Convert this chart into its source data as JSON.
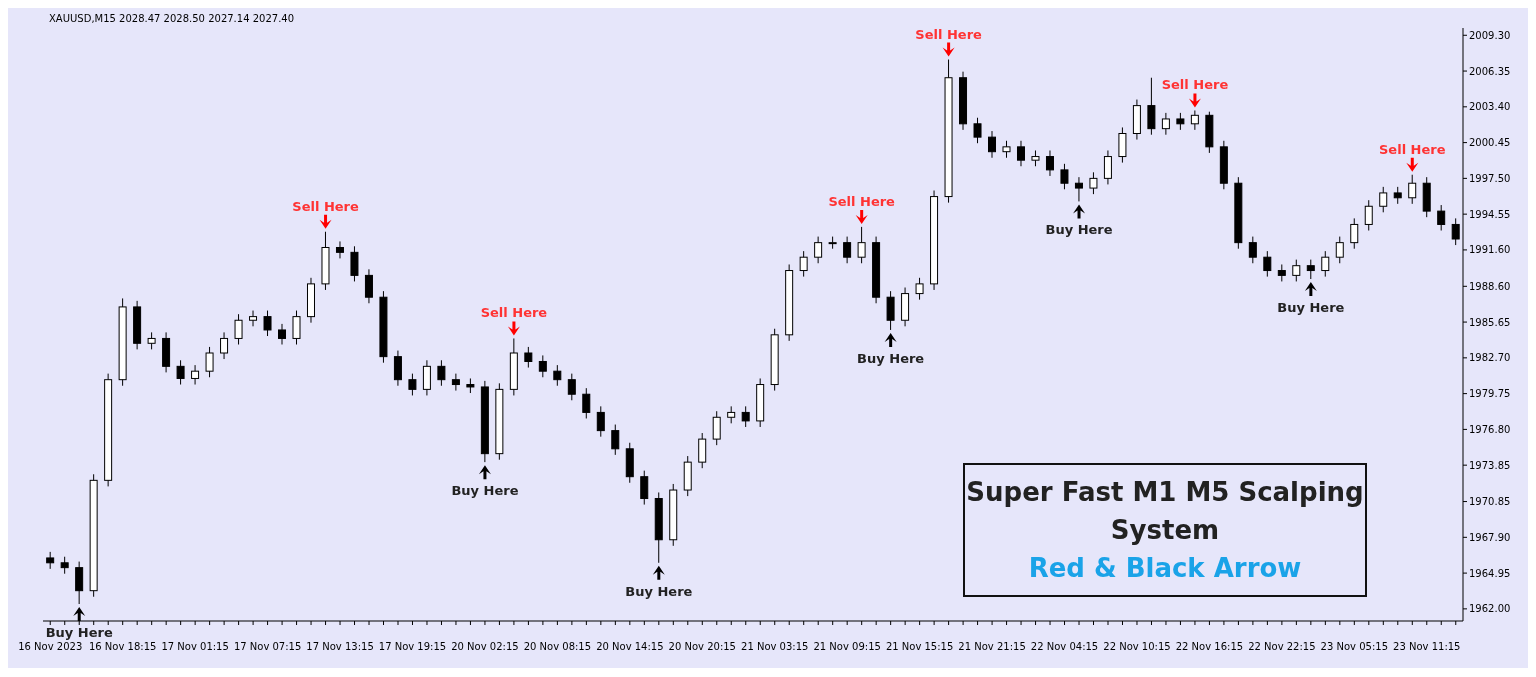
{
  "chart_data": {
    "type": "candlestick",
    "title": "XAUUSD,M15  2028.47 2028.50 2027.14 2027.40",
    "categories": [
      "16 Nov 2023",
      null,
      null,
      null,
      null,
      "16 Nov 18:15",
      null,
      null,
      null,
      null,
      "17 Nov 01:15",
      null,
      null,
      null,
      null,
      "17 Nov 07:15",
      null,
      null,
      null,
      null,
      "17 Nov 13:15",
      null,
      null,
      null,
      null,
      "17 Nov 19:15",
      null,
      null,
      null,
      null,
      "20 Nov 02:15",
      null,
      null,
      null,
      null,
      "20 Nov 08:15",
      null,
      null,
      null,
      null,
      "20 Nov 14:15",
      null,
      null,
      null,
      null,
      "20 Nov 20:15",
      null,
      null,
      null,
      null,
      "21 Nov 03:15",
      null,
      null,
      null,
      null,
      "21 Nov 09:15",
      null,
      null,
      null,
      null,
      "21 Nov 15:15",
      null,
      null,
      null,
      null,
      "21 Nov 21:15",
      null,
      null,
      null,
      null,
      "22 Nov 04:15",
      null,
      null,
      null,
      null,
      "22 Nov 10:15",
      null,
      null,
      null,
      null,
      "22 Nov 16:15",
      null,
      null,
      null,
      null,
      "22 Nov 22:15",
      null,
      null,
      null,
      null,
      "23 Nov 05:15",
      null,
      null,
      null,
      null,
      "23 Nov 11:15",
      null,
      null
    ],
    "ohlc": [
      [
        1966.2,
        1966.7,
        1965.3,
        1965.8
      ],
      [
        1965.8,
        1966.3,
        1964.9,
        1965.4
      ],
      [
        1965.4,
        1965.9,
        1962.4,
        1963.5
      ],
      [
        1963.5,
        1973.1,
        1963.0,
        1972.6
      ],
      [
        1972.6,
        1981.4,
        1972.1,
        1980.9
      ],
      [
        1980.9,
        1987.6,
        1980.4,
        1986.9
      ],
      [
        1986.9,
        1987.4,
        1983.4,
        1983.9
      ],
      [
        1983.9,
        1984.8,
        1983.4,
        1984.3
      ],
      [
        1984.3,
        1984.8,
        1981.5,
        1982.0
      ],
      [
        1982.0,
        1982.5,
        1980.5,
        1981.0
      ],
      [
        1981.0,
        1982.1,
        1980.5,
        1981.6
      ],
      [
        1981.6,
        1983.6,
        1981.1,
        1983.1
      ],
      [
        1983.1,
        1984.8,
        1982.6,
        1984.3
      ],
      [
        1984.3,
        1986.3,
        1983.8,
        1985.8
      ],
      [
        1985.8,
        1986.6,
        1985.3,
        1986.1
      ],
      [
        1986.1,
        1986.6,
        1984.5,
        1985.0
      ],
      [
        1985.0,
        1985.5,
        1983.8,
        1984.3
      ],
      [
        1984.3,
        1986.6,
        1983.8,
        1986.1
      ],
      [
        1986.1,
        1989.3,
        1985.6,
        1988.8
      ],
      [
        1988.8,
        1993.1,
        1988.3,
        1991.8
      ],
      [
        1991.8,
        1992.3,
        1990.9,
        1991.4
      ],
      [
        1991.4,
        1991.9,
        1989.0,
        1989.5
      ],
      [
        1989.5,
        1990.0,
        1987.2,
        1987.7
      ],
      [
        1987.7,
        1988.2,
        1982.3,
        1982.8
      ],
      [
        1982.8,
        1983.3,
        1980.4,
        1980.9
      ],
      [
        1980.9,
        1981.4,
        1979.6,
        1980.1
      ],
      [
        1980.1,
        1982.5,
        1979.6,
        1982.0
      ],
      [
        1982.0,
        1982.5,
        1980.4,
        1980.9
      ],
      [
        1980.9,
        1981.4,
        1980.0,
        1980.5
      ],
      [
        1980.5,
        1981.0,
        1979.8,
        1980.3
      ],
      [
        1980.3,
        1980.8,
        1974.1,
        1974.8
      ],
      [
        1974.8,
        1980.6,
        1974.3,
        1980.1
      ],
      [
        1980.1,
        1984.3,
        1979.6,
        1983.1
      ],
      [
        1983.1,
        1983.6,
        1981.9,
        1982.4
      ],
      [
        1982.4,
        1982.9,
        1981.1,
        1981.6
      ],
      [
        1981.6,
        1982.1,
        1980.4,
        1980.9
      ],
      [
        1980.9,
        1981.4,
        1979.2,
        1979.7
      ],
      [
        1979.7,
        1980.2,
        1977.7,
        1978.2
      ],
      [
        1978.2,
        1978.7,
        1976.2,
        1976.7
      ],
      [
        1976.7,
        1977.2,
        1974.7,
        1975.2
      ],
      [
        1975.2,
        1975.7,
        1972.4,
        1972.9
      ],
      [
        1972.9,
        1973.4,
        1970.6,
        1971.1
      ],
      [
        1971.1,
        1971.6,
        1965.8,
        1967.7
      ],
      [
        1967.7,
        1972.3,
        1967.2,
        1971.8
      ],
      [
        1971.8,
        1974.6,
        1971.3,
        1974.1
      ],
      [
        1974.1,
        1976.5,
        1973.6,
        1976.0
      ],
      [
        1976.0,
        1978.3,
        1975.5,
        1977.8
      ],
      [
        1977.8,
        1978.7,
        1977.3,
        1978.2
      ],
      [
        1978.2,
        1978.7,
        1977.0,
        1977.5
      ],
      [
        1977.5,
        1981.0,
        1977.0,
        1980.5
      ],
      [
        1980.5,
        1985.1,
        1980.0,
        1984.6
      ],
      [
        1984.6,
        1990.4,
        1984.1,
        1989.9
      ],
      [
        1989.9,
        1991.5,
        1989.4,
        1991.0
      ],
      [
        1991.0,
        1992.7,
        1990.5,
        1992.2
      ],
      [
        1992.2,
        1992.7,
        1991.7,
        1992.2
      ],
      [
        1992.2,
        1992.7,
        1990.5,
        1991.0
      ],
      [
        1991.0,
        1993.5,
        1990.5,
        1992.2
      ],
      [
        1992.2,
        1992.7,
        1987.2,
        1987.7
      ],
      [
        1987.7,
        1988.2,
        1985.0,
        1985.8
      ],
      [
        1985.8,
        1988.5,
        1985.3,
        1988.0
      ],
      [
        1988.0,
        1989.3,
        1987.5,
        1988.8
      ],
      [
        1988.8,
        1996.5,
        1988.3,
        1996.0
      ],
      [
        1996.0,
        2007.3,
        1995.5,
        2005.8
      ],
      [
        2005.8,
        2006.3,
        2001.5,
        2002.0
      ],
      [
        2002.0,
        2002.5,
        2000.4,
        2000.9
      ],
      [
        2000.9,
        2001.4,
        1999.2,
        1999.7
      ],
      [
        1999.7,
        2000.6,
        1999.2,
        2000.1
      ],
      [
        2000.1,
        2000.6,
        1998.5,
        1999.0
      ],
      [
        1999.0,
        1999.8,
        1998.5,
        1999.3
      ],
      [
        1999.3,
        1999.8,
        1997.7,
        1998.2
      ],
      [
        1998.2,
        1998.7,
        1996.6,
        1997.1
      ],
      [
        1997.1,
        1997.6,
        1995.6,
        1996.7
      ],
      [
        1996.7,
        1998.0,
        1996.2,
        1997.5
      ],
      [
        1997.5,
        1999.8,
        1997.0,
        1999.3
      ],
      [
        1999.3,
        2001.7,
        1998.8,
        2001.2
      ],
      [
        2001.2,
        2004.0,
        2000.7,
        2003.5
      ],
      [
        2003.5,
        2005.8,
        2001.1,
        2001.6
      ],
      [
        2001.6,
        2002.9,
        2001.1,
        2002.4
      ],
      [
        2002.4,
        2002.9,
        2001.5,
        2002.0
      ],
      [
        2002.0,
        2003.1,
        2001.5,
        2002.7
      ],
      [
        2002.7,
        2003.0,
        1999.6,
        2000.1
      ],
      [
        2000.1,
        2000.6,
        1996.6,
        1997.1
      ],
      [
        1997.1,
        1997.6,
        1991.7,
        1992.2
      ],
      [
        1992.2,
        1992.7,
        1990.5,
        1991.0
      ],
      [
        1991.0,
        1991.5,
        1989.4,
        1989.9
      ],
      [
        1989.9,
        1990.4,
        1989.0,
        1989.5
      ],
      [
        1989.5,
        1990.8,
        1989.0,
        1990.3
      ],
      [
        1990.3,
        1990.8,
        1989.2,
        1989.9
      ],
      [
        1989.9,
        1991.5,
        1989.4,
        1991.0
      ],
      [
        1991.0,
        1992.7,
        1990.5,
        1992.2
      ],
      [
        1992.2,
        1994.2,
        1991.7,
        1993.7
      ],
      [
        1993.7,
        1995.7,
        1993.2,
        1995.2
      ],
      [
        1995.2,
        1996.8,
        1994.7,
        1996.3
      ],
      [
        1996.3,
        1996.8,
        1995.4,
        1995.9
      ],
      [
        1995.9,
        1997.8,
        1995.4,
        1997.1
      ],
      [
        1997.1,
        1997.6,
        1994.3,
        1994.8
      ],
      [
        1994.8,
        1995.3,
        1993.2,
        1993.7
      ],
      [
        1993.7,
        1994.2,
        1992.0,
        1992.5
      ]
    ],
    "ylim": [
      1961.0,
      2009.9
    ],
    "yticks": [
      {
        "value": 1962,
        "label": "1962.00"
      },
      {
        "value": 1964.95,
        "label": "1964.95"
      },
      {
        "value": 1967.9,
        "label": "1967.90"
      },
      {
        "value": 1970.85,
        "label": "1970.85"
      },
      {
        "value": 1973.85,
        "label": "1973.85"
      },
      {
        "value": 1976.8,
        "label": "1976.80"
      },
      {
        "value": 1979.75,
        "label": "1979.75"
      },
      {
        "value": 1982.7,
        "label": "1982.70"
      },
      {
        "value": 1985.65,
        "label": "1985.65"
      },
      {
        "value": 1988.6,
        "label": "1988.60"
      },
      {
        "value": 1991.6,
        "label": "1991.60"
      },
      {
        "value": 1994.55,
        "label": "1994.55"
      },
      {
        "value": 1997.5,
        "label": "1997.50"
      },
      {
        "value": 2000.45,
        "label": "2000.45"
      },
      {
        "value": 2003.4,
        "label": "2003.40"
      },
      {
        "value": 2006.35,
        "label": "2006.35"
      },
      {
        "value": 2009.3,
        "label": "2009.30"
      }
    ],
    "annotations": [
      {
        "text": "Buy Here",
        "y": 1962.4
      },
      {
        "text": "Sell Here",
        "y": 1993.1
      },
      {
        "text": "Buy Here",
        "y": 1974.1
      },
      {
        "text": "Sell Here",
        "y": 1984.3
      },
      {
        "text": "Buy Here",
        "y": 1965.8
      },
      {
        "text": "Sell Here",
        "y": 1993.5
      },
      {
        "text": "Buy Here",
        "y": 1985.0
      },
      {
        "text": "Sell Here",
        "y": 2007.3
      },
      {
        "text": "Buy Here",
        "y": 1995.6
      },
      {
        "text": "Sell Here",
        "y": 2003.1
      },
      {
        "text": "Buy Here",
        "y": 1989.2
      },
      {
        "text": "Sell Here",
        "y": 1997.8
      },
      "Super Fast M1 M5 Scalping System",
      "Red & Black Arrow"
    ]
  }
}
